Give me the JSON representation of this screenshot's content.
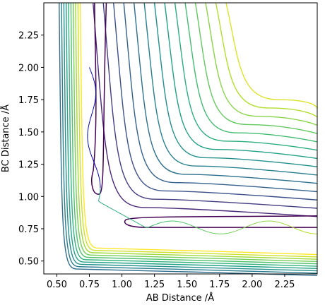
{
  "chart_data": {
    "type": "contour",
    "xlabel": "AB Distance /Å",
    "ylabel": "BC Distance /Å",
    "xlim": [
      0.4,
      2.5
    ],
    "ylim": [
      0.4,
      2.5
    ],
    "xticks": [
      "0.50",
      "0.75",
      "1.00",
      "1.25",
      "1.50",
      "1.75",
      "2.00",
      "2.25"
    ],
    "yticks": [
      "0.50",
      "0.75",
      "1.00",
      "1.25",
      "1.50",
      "1.75",
      "2.00",
      "2.25"
    ],
    "grid": false,
    "colormap": "viridis",
    "contour_levels": 24,
    "trajectory": {
      "start": [
        0.75,
        2.0
      ],
      "crossing": [
        0.95,
        0.88
      ],
      "end_region": [
        2.5,
        0.76
      ],
      "colored_by": "time"
    },
    "colors": {
      "low": "#440154",
      "mid": "#21918c",
      "high": "#fde725"
    }
  }
}
